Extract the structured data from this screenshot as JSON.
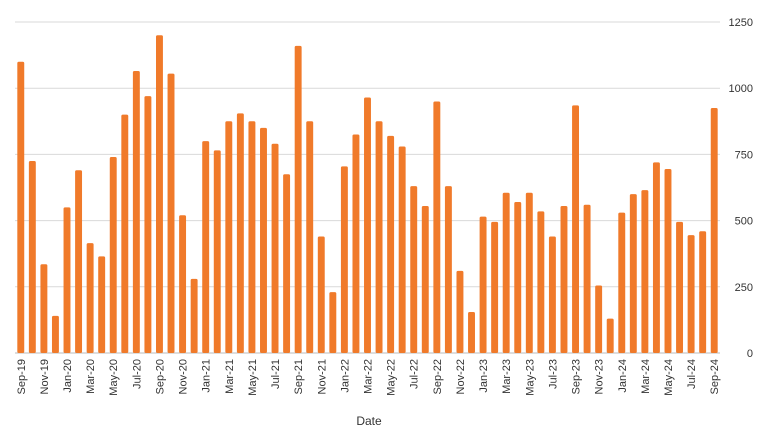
{
  "chart_data": {
    "type": "bar",
    "xlabel": "Date",
    "ylabel": "",
    "ylim": [
      0,
      1250
    ],
    "yticks": [
      0,
      250,
      500,
      750,
      1000,
      1250
    ],
    "y_axis_side": "right",
    "grid": true,
    "bar_color": "#f07a2a",
    "categories": [
      "Sep-19",
      "Oct-19",
      "Nov-19",
      "Dec-19",
      "Jan-20",
      "Feb-20",
      "Mar-20",
      "Apr-20",
      "May-20",
      "Jun-20",
      "Jul-20",
      "Aug-20",
      "Sep-20",
      "Oct-20",
      "Nov-20",
      "Dec-20",
      "Jan-21",
      "Feb-21",
      "Mar-21",
      "Apr-21",
      "May-21",
      "Jun-21",
      "Jul-21",
      "Aug-21",
      "Sep-21",
      "Oct-21",
      "Nov-21",
      "Dec-21",
      "Jan-22",
      "Feb-22",
      "Mar-22",
      "Apr-22",
      "May-22",
      "Jun-22",
      "Jul-22",
      "Aug-22",
      "Sep-22",
      "Oct-22",
      "Nov-22",
      "Dec-22",
      "Jan-23",
      "Feb-23",
      "Mar-23",
      "Apr-23",
      "May-23",
      "Jun-23",
      "Jul-23",
      "Aug-23",
      "Sep-23",
      "Oct-23",
      "Nov-23",
      "Dec-23",
      "Jan-24",
      "Feb-24",
      "Mar-24",
      "Apr-24",
      "May-24",
      "Jun-24",
      "Jul-24",
      "Aug-24",
      "Sep-24"
    ],
    "xtick_labels": [
      "Sep-19",
      "Nov-19",
      "Jan-20",
      "Mar-20",
      "May-20",
      "Jul-20",
      "Sep-20",
      "Nov-20",
      "Jan-21",
      "Mar-21",
      "May-21",
      "Jul-21",
      "Sep-21",
      "Nov-21",
      "Jan-22",
      "Mar-22",
      "May-22",
      "Jul-22",
      "Sep-22",
      "Nov-22",
      "Jan-23",
      "Mar-23",
      "May-23",
      "Jul-23",
      "Sep-23",
      "Nov-23",
      "Jan-24",
      "Mar-24",
      "May-24",
      "Jul-24",
      "Sep-24"
    ],
    "values": [
      1100,
      725,
      335,
      140,
      550,
      690,
      415,
      365,
      740,
      900,
      1065,
      970,
      1200,
      1055,
      520,
      280,
      800,
      765,
      875,
      905,
      875,
      850,
      790,
      675,
      1160,
      875,
      440,
      230,
      705,
      825,
      965,
      875,
      820,
      780,
      630,
      555,
      950,
      630,
      310,
      155,
      515,
      495,
      605,
      570,
      605,
      535,
      440,
      555,
      935,
      560,
      255,
      130,
      530,
      600,
      615,
      720,
      695,
      495,
      445,
      460,
      925
    ]
  }
}
